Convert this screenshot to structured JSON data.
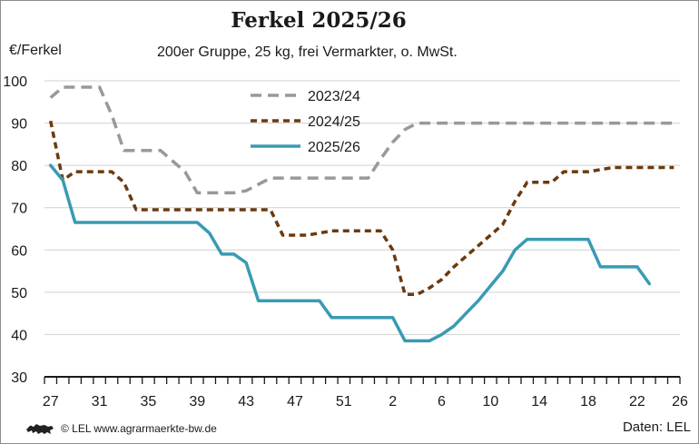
{
  "header": {
    "title": "Ferkel 2025/26",
    "subtitle": "200er Gruppe, 25 kg, frei Vermarkter, o. MwSt.",
    "y_unit": "€/Ferkel"
  },
  "footer": {
    "copyright": "© LEL www.agrarmaerkte-bw.de",
    "source": "Daten: LEL",
    "logo_icon": "lion-logo-icon"
  },
  "chart_data": {
    "type": "line",
    "title": "Ferkel 2025/26",
    "subtitle": "200er Gruppe, 25 kg, frei Vermarkter, o. MwSt.",
    "ylabel": "€/Ferkel",
    "xlabel": "",
    "ylim": [
      30,
      100
    ],
    "yticks": [
      30,
      40,
      50,
      60,
      70,
      80,
      90,
      100
    ],
    "x_tick_labels": [
      "27",
      "31",
      "35",
      "39",
      "43",
      "47",
      "51",
      "2",
      "6",
      "10",
      "14",
      "18",
      "22",
      "26"
    ],
    "x_weeks": [
      "27",
      "28",
      "29",
      "30",
      "31",
      "32",
      "33",
      "34",
      "35",
      "36",
      "37",
      "38",
      "39",
      "40",
      "41",
      "42",
      "43",
      "44",
      "45",
      "46",
      "47",
      "48",
      "49",
      "50",
      "51",
      "52",
      "1",
      "2",
      "3",
      "4",
      "5",
      "6",
      "7",
      "8",
      "9",
      "10",
      "11",
      "12",
      "13",
      "14",
      "15",
      "16",
      "17",
      "18",
      "19",
      "20",
      "21",
      "22",
      "23",
      "24",
      "25",
      "26"
    ],
    "grid": "horizontal",
    "legend_position": "top-center",
    "series": [
      {
        "name": "2023/24",
        "color": "#999999",
        "dash": "dashed",
        "values": [
          96,
          98.5,
          98.5,
          98.5,
          98.5,
          92,
          83.5,
          83.5,
          83.5,
          83.5,
          81,
          78.5,
          73.5,
          73.5,
          73.5,
          73.5,
          74,
          75.5,
          77,
          77,
          77,
          77,
          77,
          77,
          77,
          77,
          77,
          81.5,
          85.5,
          88.5,
          90,
          90,
          90,
          90,
          90,
          90,
          90,
          90,
          90,
          90,
          90,
          90,
          90,
          90,
          90,
          90,
          90,
          90,
          90,
          90,
          90,
          90
        ]
      },
      {
        "name": "2024/25",
        "color": "#6b3a0e",
        "dash": "dashed",
        "values": [
          90.5,
          76.5,
          78.5,
          78.5,
          78.5,
          78.5,
          76,
          69.5,
          69.5,
          69.5,
          69.5,
          69.5,
          69.5,
          69.5,
          69.5,
          69.5,
          69.5,
          69.5,
          69.5,
          63.5,
          63.5,
          63.5,
          64,
          64.5,
          64.5,
          64.5,
          64.5,
          64.5,
          60,
          49.5,
          49.5,
          51,
          53,
          56,
          58.5,
          61,
          63.5,
          66,
          71.5,
          76,
          76,
          76,
          78.5,
          78.5,
          78.5,
          79,
          79.5,
          79.5,
          79.5,
          79.5,
          79.5,
          79.5
        ]
      },
      {
        "name": "2025/26",
        "color": "#3a9ab3",
        "dash": "solid",
        "values": [
          80,
          76.5,
          66.5,
          66.5,
          66.5,
          66.5,
          66.5,
          66.5,
          66.5,
          66.5,
          66.5,
          66.5,
          66.5,
          64,
          59,
          59,
          57,
          48,
          48,
          48,
          48,
          48,
          48,
          44,
          44,
          44,
          44,
          44,
          44,
          38.5,
          38.5,
          38.5,
          40,
          42,
          45,
          48,
          51.5,
          55,
          60,
          62.5,
          62.5,
          62.5,
          62.5,
          62.5,
          62.5,
          56,
          56,
          56,
          56,
          52
        ]
      }
    ]
  }
}
